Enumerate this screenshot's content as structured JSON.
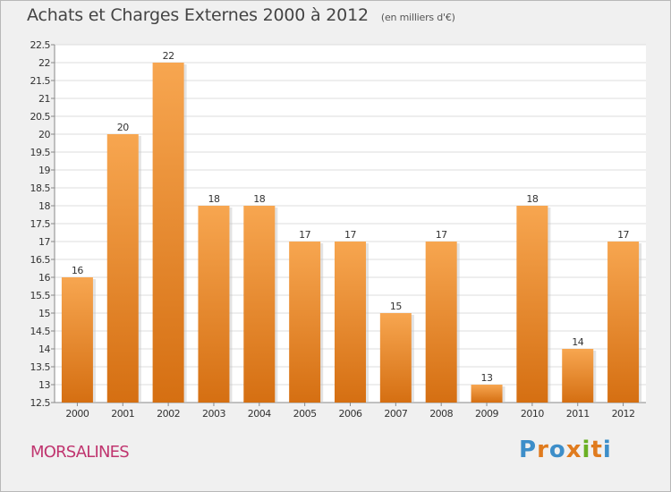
{
  "header": {
    "title": "Achats et Charges Externes 2000 à 2012",
    "unit": "(en milliers d'€)"
  },
  "town": "MORSALINES",
  "logo": {
    "text": "Proxiti",
    "letter_colors": [
      "#3d8ec9",
      "#e07b1e",
      "#3d8ec9",
      "#e07b1e",
      "#6ab023",
      "#e07b1e",
      "#3d8ec9"
    ]
  },
  "colors": {
    "bar_top": "#f7a650",
    "bar_bottom": "#d56f12",
    "grid": "#dcdcdc",
    "text": "#333333",
    "town": "#c0356f"
  },
  "chart_data": {
    "type": "bar",
    "categories": [
      "2000",
      "2001",
      "2002",
      "2003",
      "2004",
      "2005",
      "2006",
      "2007",
      "2008",
      "2009",
      "2010",
      "2011",
      "2012"
    ],
    "values": [
      16,
      20,
      22,
      18,
      18,
      17,
      17,
      15,
      17,
      13,
      18,
      14,
      17
    ],
    "title": "Achats et Charges Externes 2000 à 2012",
    "subtitle": "(en milliers d'€)",
    "xlabel": "",
    "ylabel": "",
    "ylim": [
      12.5,
      22.5
    ],
    "yticks": [
      "12.5",
      "13",
      "13.5",
      "14",
      "14.5",
      "15",
      "15.5",
      "16",
      "16.5",
      "17",
      "17.5",
      "18",
      "18.5",
      "19",
      "19.5",
      "20",
      "20.5",
      "21",
      "21.5",
      "22",
      "22.5"
    ],
    "grid": true,
    "legend": "none"
  }
}
